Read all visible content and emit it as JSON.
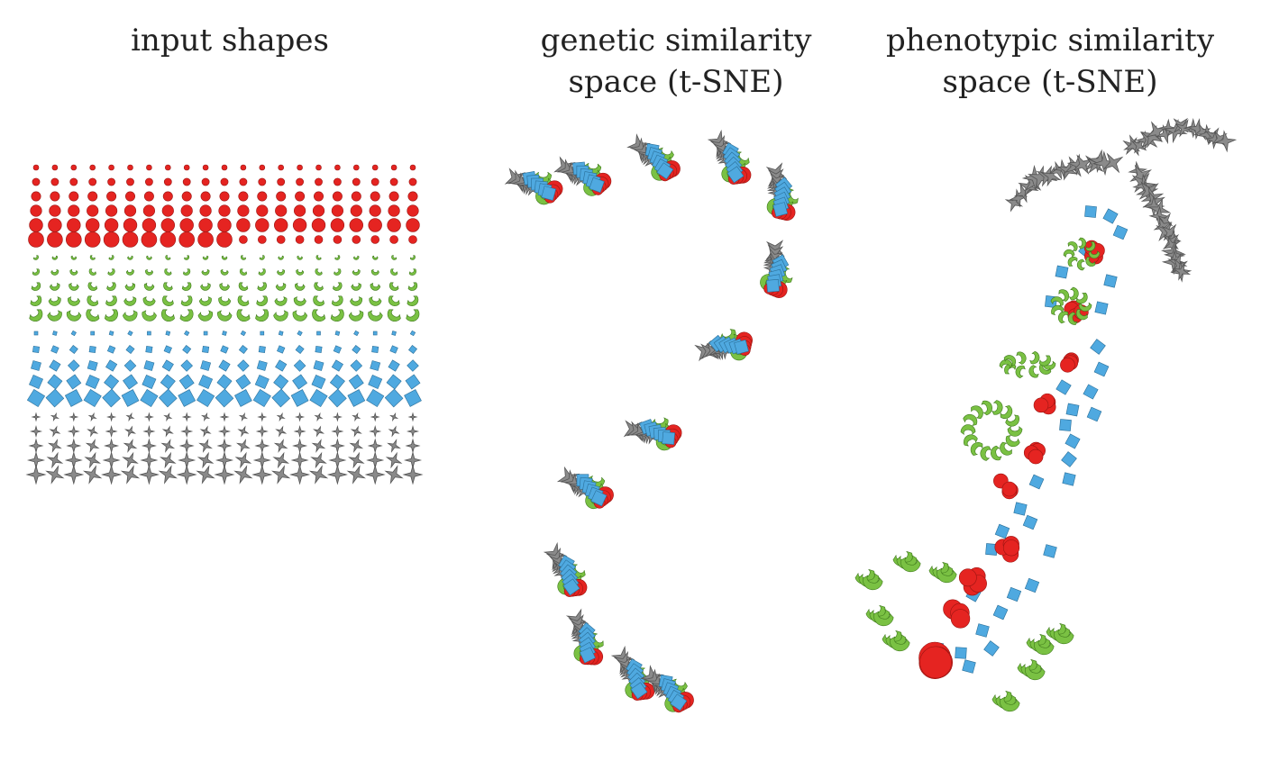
{
  "panels": [
    {
      "title": "input shapes"
    },
    {
      "title": "genetic similarity\nspace (t-SNE)"
    },
    {
      "title": "phenotypic similarity\nspace (t-SNE)"
    }
  ],
  "colors": {
    "circle": "#e52421",
    "crescent": "#7ac143",
    "square": "#4fa9e0",
    "star": "#555555",
    "outline": "#333333"
  },
  "icons": [
    "red-circle-icon",
    "green-crescent-icon",
    "blue-square-icon",
    "gray-star-icon"
  ]
}
